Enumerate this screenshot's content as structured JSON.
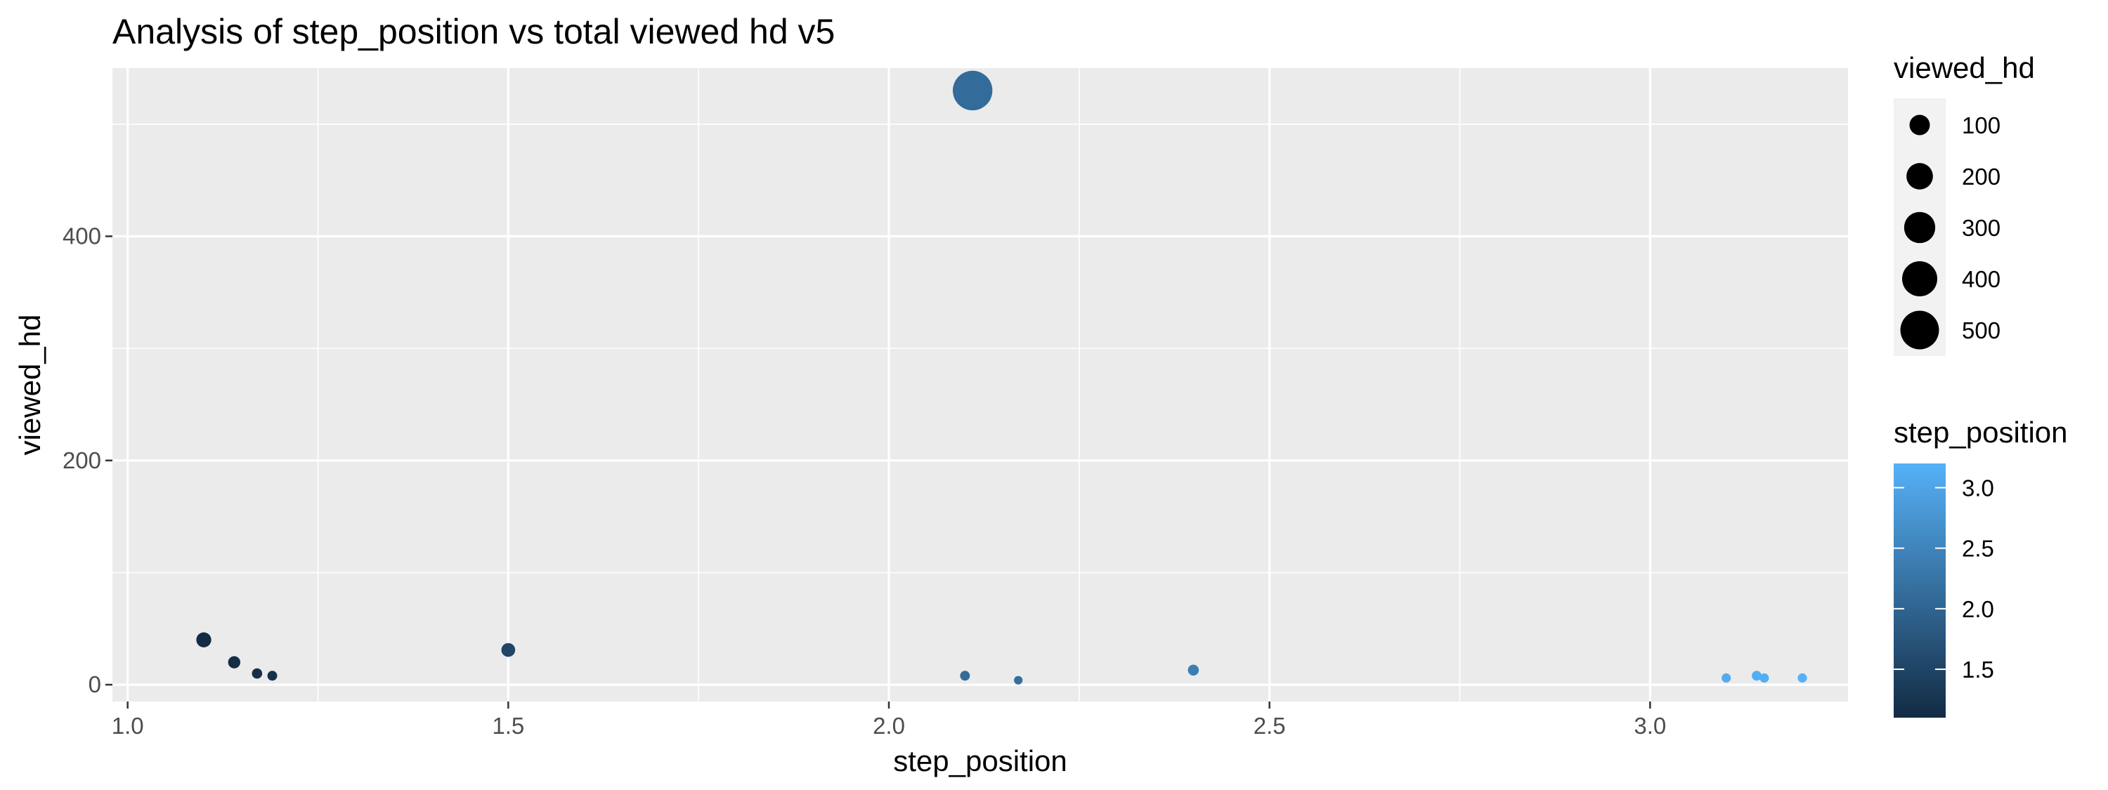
{
  "chart_data": {
    "type": "scatter",
    "title": "Analysis of step_position vs total viewed hd v5",
    "xlabel": "step_position",
    "ylabel": "viewed_hd",
    "xlim": [
      0.98,
      3.26
    ],
    "ylim": [
      -15,
      550
    ],
    "x_ticks": [
      1.0,
      1.5,
      2.0,
      2.5,
      3.0
    ],
    "x_tick_labels": [
      "1.0",
      "1.5",
      "2.0",
      "2.5",
      "3.0"
    ],
    "y_ticks": [
      0,
      200,
      400
    ],
    "y_tick_labels": [
      "0",
      "200",
      "400"
    ],
    "grid": true,
    "points": [
      {
        "x": 1.1,
        "y": 40
      },
      {
        "x": 1.14,
        "y": 20
      },
      {
        "x": 1.17,
        "y": 10
      },
      {
        "x": 1.19,
        "y": 8
      },
      {
        "x": 1.5,
        "y": 31
      },
      {
        "x": 2.1,
        "y": 8
      },
      {
        "x": 2.11,
        "y": 530
      },
      {
        "x": 2.17,
        "y": 4
      },
      {
        "x": 2.4,
        "y": 13
      },
      {
        "x": 3.1,
        "y": 6
      },
      {
        "x": 3.14,
        "y": 8
      },
      {
        "x": 3.15,
        "y": 6
      },
      {
        "x": 3.2,
        "y": 6
      }
    ],
    "size_legend": {
      "title": "viewed_hd",
      "values": [
        100,
        200,
        300,
        400,
        500
      ],
      "labels": [
        "100",
        "200",
        "300",
        "400",
        "500"
      ]
    },
    "color_legend": {
      "title": "step_position",
      "low_color": "#132b43",
      "high_color": "#56b1f7",
      "range": [
        1.1,
        3.2
      ],
      "ticks": [
        1.5,
        2.0,
        2.5,
        3.0
      ],
      "tick_labels": [
        "1.5",
        "2.0",
        "2.5",
        "3.0"
      ]
    },
    "legend_position": "right",
    "panel_color": "#ebebeb",
    "grid_color": "#ffffff"
  }
}
